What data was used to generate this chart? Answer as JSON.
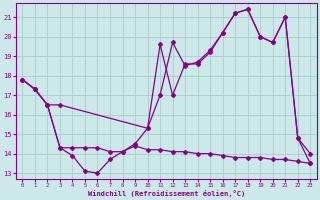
{
  "background_color": "#cce8e8",
  "grid_color": "#aacccc",
  "line_color": "#880088",
  "xlim": [
    -0.5,
    23.5
  ],
  "ylim": [
    12.7,
    21.7
  ],
  "yticks": [
    13,
    14,
    15,
    16,
    17,
    18,
    19,
    20,
    21
  ],
  "xticks": [
    0,
    1,
    2,
    3,
    4,
    5,
    6,
    7,
    8,
    9,
    10,
    11,
    12,
    13,
    14,
    15,
    16,
    17,
    18,
    19,
    20,
    21,
    22,
    23
  ],
  "xlabel": "Windchill (Refroidissement éolien,°C)",
  "series1_x": [
    0,
    1,
    2,
    3,
    10,
    11,
    12,
    13,
    14,
    15,
    16,
    17,
    18,
    19,
    20,
    21,
    22,
    23
  ],
  "series1_y": [
    17.8,
    17.3,
    16.5,
    16.5,
    15.3,
    19.6,
    17.0,
    18.6,
    18.6,
    19.2,
    20.2,
    21.2,
    21.4,
    20.0,
    19.7,
    21.0,
    14.8,
    13.5
  ],
  "series2_x": [
    0,
    1,
    2,
    3,
    4,
    5,
    6,
    7,
    8,
    9,
    10,
    11,
    12,
    13,
    14,
    15,
    16,
    17,
    18,
    19,
    20,
    21,
    22,
    23
  ],
  "series2_y": [
    17.8,
    17.3,
    16.5,
    14.3,
    13.9,
    13.1,
    13.0,
    13.7,
    14.1,
    14.5,
    15.3,
    17.0,
    19.7,
    18.5,
    18.7,
    19.3,
    20.2,
    21.2,
    21.4,
    20.0,
    19.7,
    21.0,
    14.8,
    14.0
  ],
  "series3_x": [
    0,
    1,
    2,
    3,
    4,
    5,
    6,
    7,
    8,
    9,
    10,
    11,
    12,
    13,
    14,
    15,
    16,
    17,
    18,
    19,
    20,
    21,
    22,
    23
  ],
  "series3_y": [
    17.8,
    17.3,
    16.5,
    14.3,
    14.3,
    14.3,
    14.3,
    14.1,
    14.1,
    14.4,
    14.2,
    14.2,
    14.1,
    14.1,
    14.0,
    14.0,
    13.9,
    13.8,
    13.8,
    13.8,
    13.7,
    13.7,
    13.6,
    13.5
  ]
}
